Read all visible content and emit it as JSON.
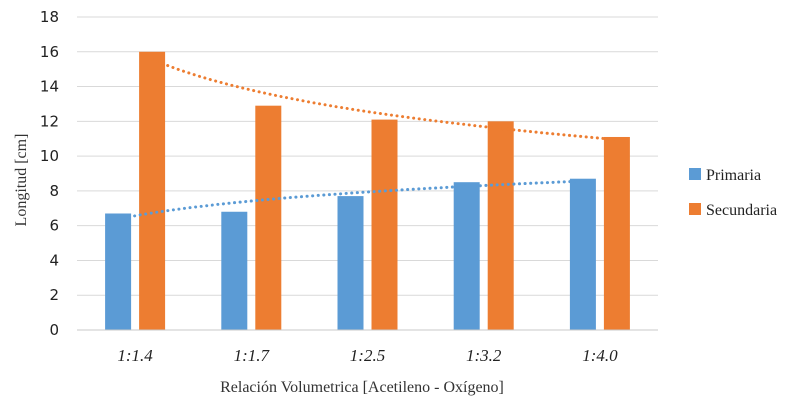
{
  "chart_data": {
    "type": "bar",
    "categories": [
      "1:1.4",
      "1:1.7",
      "1:2.5",
      "1:3.2",
      "1:4.0"
    ],
    "series": [
      {
        "name": "Primaria",
        "values": [
          6.7,
          6.8,
          7.7,
          8.5,
          8.7
        ],
        "color": "#5B9BD5",
        "trendline": {
          "type": "logarithmic",
          "style": "dotted"
        }
      },
      {
        "name": "Secundaria",
        "values": [
          16.0,
          12.9,
          12.1,
          12.0,
          11.1
        ],
        "color": "#ED7D31",
        "trendline": {
          "type": "logarithmic",
          "style": "dotted"
        }
      }
    ],
    "title": "",
    "xlabel": "Relación Volumetrica [Acetileno - Oxígeno]",
    "ylabel": "Longitud [cm]",
    "ylim": [
      0,
      18
    ],
    "yticks": [
      0,
      2,
      4,
      6,
      8,
      10,
      12,
      14,
      16,
      18
    ],
    "grid": true,
    "legend_position": "right"
  }
}
